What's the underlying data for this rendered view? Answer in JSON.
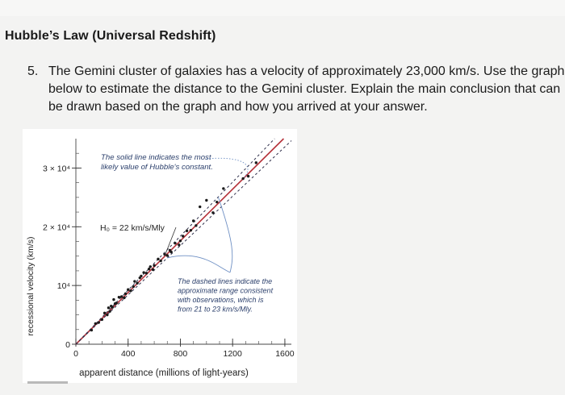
{
  "page": {
    "section_title": "Hubble’s Law (Universal Redshift)",
    "question_number": "5.",
    "question_text": "The Gemini cluster of galaxies has a velocity of approximately 23,000 km/s. Use the graph below to estimate the distance to the Gemini cluster. Explain the main conclusion that can be drawn based on the graph and how you arrived at your answer."
  },
  "colors": {
    "background": "#f3f3f2",
    "fit_line": "#b5323a",
    "dashed_line": "#2f2f4a",
    "points": "#1b1b1b",
    "callout": "#6f90c4",
    "annotation_text": "#2b3f6b"
  },
  "chart_data": {
    "type": "scatter",
    "xlabel": "apparent distance (millions of light-years)",
    "ylabel": "recessional velocity (km/s)",
    "xlim": [
      0,
      1650
    ],
    "ylim": [
      0,
      35000
    ],
    "x_ticks": [
      {
        "value": 0,
        "label": "0"
      },
      {
        "value": 400,
        "label": "400"
      },
      {
        "value": 800,
        "label": "800"
      },
      {
        "value": 1200,
        "label": "1200"
      },
      {
        "value": 1600,
        "label": "1600"
      }
    ],
    "y_ticks": [
      {
        "value": 0,
        "label": "0"
      },
      {
        "value": 10000,
        "label": "10⁴"
      },
      {
        "value": 20000,
        "label": "2 × 10⁴"
      },
      {
        "value": 30000,
        "label": "3 × 10⁴"
      }
    ],
    "series": [
      {
        "role": "best-fit",
        "slope": 22,
        "style": "solid"
      },
      {
        "role": "range-upper",
        "slope": 23,
        "style": "dashed"
      },
      {
        "role": "range-lower",
        "slope": 21,
        "style": "dashed"
      },
      {
        "role": "observations",
        "points": [
          {
            "x": 120,
            "y": 2400
          },
          {
            "x": 150,
            "y": 3500
          },
          {
            "x": 175,
            "y": 3700
          },
          {
            "x": 200,
            "y": 4200
          },
          {
            "x": 220,
            "y": 5300
          },
          {
            "x": 240,
            "y": 5000
          },
          {
            "x": 250,
            "y": 6200
          },
          {
            "x": 260,
            "y": 5600
          },
          {
            "x": 270,
            "y": 6500
          },
          {
            "x": 280,
            "y": 6300
          },
          {
            "x": 290,
            "y": 7600
          },
          {
            "x": 300,
            "y": 6900
          },
          {
            "x": 310,
            "y": 7000
          },
          {
            "x": 330,
            "y": 8000
          },
          {
            "x": 350,
            "y": 8100
          },
          {
            "x": 370,
            "y": 7900
          },
          {
            "x": 380,
            "y": 8600
          },
          {
            "x": 400,
            "y": 9300
          },
          {
            "x": 420,
            "y": 9100
          },
          {
            "x": 440,
            "y": 9800
          },
          {
            "x": 450,
            "y": 10700
          },
          {
            "x": 470,
            "y": 10400
          },
          {
            "x": 490,
            "y": 11300
          },
          {
            "x": 500,
            "y": 11600
          },
          {
            "x": 520,
            "y": 12200
          },
          {
            "x": 540,
            "y": 12100
          },
          {
            "x": 560,
            "y": 12800
          },
          {
            "x": 570,
            "y": 13200
          },
          {
            "x": 590,
            "y": 12700
          },
          {
            "x": 600,
            "y": 13400
          },
          {
            "x": 630,
            "y": 14500
          },
          {
            "x": 650,
            "y": 14200
          },
          {
            "x": 680,
            "y": 15300
          },
          {
            "x": 700,
            "y": 15100
          },
          {
            "x": 720,
            "y": 16000
          },
          {
            "x": 730,
            "y": 15700
          },
          {
            "x": 760,
            "y": 17200
          },
          {
            "x": 790,
            "y": 16900
          },
          {
            "x": 800,
            "y": 17600
          },
          {
            "x": 820,
            "y": 18400
          },
          {
            "x": 850,
            "y": 19300
          },
          {
            "x": 880,
            "y": 19400
          },
          {
            "x": 900,
            "y": 21000
          },
          {
            "x": 920,
            "y": 20200
          },
          {
            "x": 950,
            "y": 23400
          },
          {
            "x": 1000,
            "y": 24500
          },
          {
            "x": 1050,
            "y": 22400
          },
          {
            "x": 1080,
            "y": 24200
          },
          {
            "x": 1130,
            "y": 26500
          },
          {
            "x": 1280,
            "y": 28200
          },
          {
            "x": 1320,
            "y": 28600
          },
          {
            "x": 1380,
            "y": 30900
          }
        ]
      }
    ],
    "annotations": [
      {
        "id": "solid",
        "lines": [
          "The solid line indicates the most",
          "likely value of Hubble's constant."
        ]
      },
      {
        "id": "h0",
        "text": "H₀ = 22 km/s/Mly"
      },
      {
        "id": "dashed",
        "lines": [
          "The dashed lines indicate the",
          "approximate range consistent",
          "with observations, which is",
          "from 21 to 23 km/s/Mly."
        ]
      }
    ]
  }
}
